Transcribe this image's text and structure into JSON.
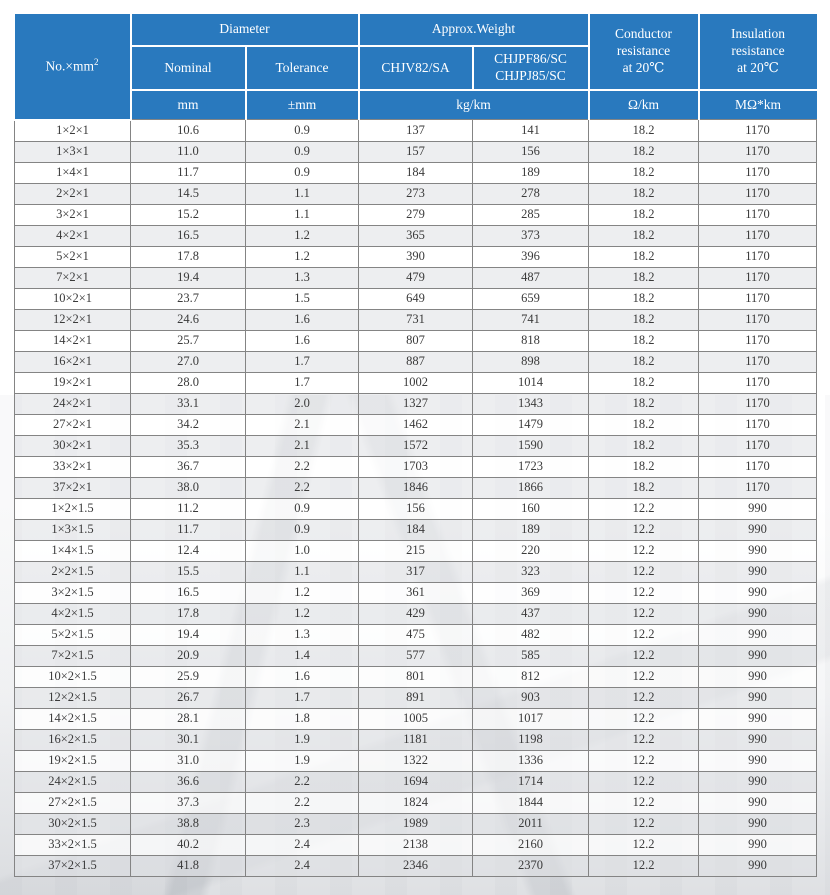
{
  "colors": {
    "header_blue": "#2979be",
    "header_text": "#ffffff",
    "row_alt_bg": "#f0f0f0",
    "grid_line": "#848484",
    "body_text": "#3a3a3a"
  },
  "header": {
    "no_mm": "No.×mm",
    "no_mm_sup": "2",
    "diameter": "Diameter",
    "nominal": "Nominal",
    "tolerance": "Tolerance",
    "approx_weight": "Approx.Weight",
    "chjv82": "CHJV82/SA",
    "chjpf86_line1": "CHJPF86/SC",
    "chjpf86_line2": "CHJPJ85/SC",
    "conductor": [
      "Conductor",
      "resistance",
      "at 20℃"
    ],
    "insulation": [
      "Insulation",
      "resistance",
      "at 20℃"
    ],
    "unit_mm": "mm",
    "unit_tolerance": "±mm",
    "unit_weight": "kg/km",
    "unit_conductor": "Ω/km",
    "unit_insulation": "MΩ*km"
  },
  "table": {
    "columns": [
      "spec",
      "nominal-diameter",
      "tolerance",
      "weight-chjv82",
      "weight-chjpf86",
      "conductor-resistance",
      "insulation-resistance"
    ],
    "rows": [
      [
        "1×2×1",
        "10.6",
        "0.9",
        "137",
        "141",
        "18.2",
        "1170"
      ],
      [
        "1×3×1",
        "11.0",
        "0.9",
        "157",
        "156",
        "18.2",
        "1170"
      ],
      [
        "1×4×1",
        "11.7",
        "0.9",
        "184",
        "189",
        "18.2",
        "1170"
      ],
      [
        "2×2×1",
        "14.5",
        "1.1",
        "273",
        "278",
        "18.2",
        "1170"
      ],
      [
        "3×2×1",
        "15.2",
        "1.1",
        "279",
        "285",
        "18.2",
        "1170"
      ],
      [
        "4×2×1",
        "16.5",
        "1.2",
        "365",
        "373",
        "18.2",
        "1170"
      ],
      [
        "5×2×1",
        "17.8",
        "1.2",
        "390",
        "396",
        "18.2",
        "1170"
      ],
      [
        "7×2×1",
        "19.4",
        "1.3",
        "479",
        "487",
        "18.2",
        "1170"
      ],
      [
        "10×2×1",
        "23.7",
        "1.5",
        "649",
        "659",
        "18.2",
        "1170"
      ],
      [
        "12×2×1",
        "24.6",
        "1.6",
        "731",
        "741",
        "18.2",
        "1170"
      ],
      [
        "14×2×1",
        "25.7",
        "1.6",
        "807",
        "818",
        "18.2",
        "1170"
      ],
      [
        "16×2×1",
        "27.0",
        "1.7",
        "887",
        "898",
        "18.2",
        "1170"
      ],
      [
        "19×2×1",
        "28.0",
        "1.7",
        "1002",
        "1014",
        "18.2",
        "1170"
      ],
      [
        "24×2×1",
        "33.1",
        "2.0",
        "1327",
        "1343",
        "18.2",
        "1170"
      ],
      [
        "27×2×1",
        "34.2",
        "2.1",
        "1462",
        "1479",
        "18.2",
        "1170"
      ],
      [
        "30×2×1",
        "35.3",
        "2.1",
        "1572",
        "1590",
        "18.2",
        "1170"
      ],
      [
        "33×2×1",
        "36.7",
        "2.2",
        "1703",
        "1723",
        "18.2",
        "1170"
      ],
      [
        "37×2×1",
        "38.0",
        "2.2",
        "1846",
        "1866",
        "18.2",
        "1170"
      ],
      [
        "1×2×1.5",
        "11.2",
        "0.9",
        "156",
        "160",
        "12.2",
        "990"
      ],
      [
        "1×3×1.5",
        "11.7",
        "0.9",
        "184",
        "189",
        "12.2",
        "990"
      ],
      [
        "1×4×1.5",
        "12.4",
        "1.0",
        "215",
        "220",
        "12.2",
        "990"
      ],
      [
        "2×2×1.5",
        "15.5",
        "1.1",
        "317",
        "323",
        "12.2",
        "990"
      ],
      [
        "3×2×1.5",
        "16.5",
        "1.2",
        "361",
        "369",
        "12.2",
        "990"
      ],
      [
        "4×2×1.5",
        "17.8",
        "1.2",
        "429",
        "437",
        "12.2",
        "990"
      ],
      [
        "5×2×1.5",
        "19.4",
        "1.3",
        "475",
        "482",
        "12.2",
        "990"
      ],
      [
        "7×2×1.5",
        "20.9",
        "1.4",
        "577",
        "585",
        "12.2",
        "990"
      ],
      [
        "10×2×1.5",
        "25.9",
        "1.6",
        "801",
        "812",
        "12.2",
        "990"
      ],
      [
        "12×2×1.5",
        "26.7",
        "1.7",
        "891",
        "903",
        "12.2",
        "990"
      ],
      [
        "14×2×1.5",
        "28.1",
        "1.8",
        "1005",
        "1017",
        "12.2",
        "990"
      ],
      [
        "16×2×1.5",
        "30.1",
        "1.9",
        "1181",
        "1198",
        "12.2",
        "990"
      ],
      [
        "19×2×1.5",
        "31.0",
        "1.9",
        "1322",
        "1336",
        "12.2",
        "990"
      ],
      [
        "24×2×1.5",
        "36.6",
        "2.2",
        "1694",
        "1714",
        "12.2",
        "990"
      ],
      [
        "27×2×1.5",
        "37.3",
        "2.2",
        "1824",
        "1844",
        "12.2",
        "990"
      ],
      [
        "30×2×1.5",
        "38.8",
        "2.3",
        "1989",
        "2011",
        "12.2",
        "990"
      ],
      [
        "33×2×1.5",
        "40.2",
        "2.4",
        "2138",
        "2160",
        "12.2",
        "990"
      ],
      [
        "37×2×1.5",
        "41.8",
        "2.4",
        "2346",
        "2370",
        "12.2",
        "990"
      ]
    ]
  }
}
